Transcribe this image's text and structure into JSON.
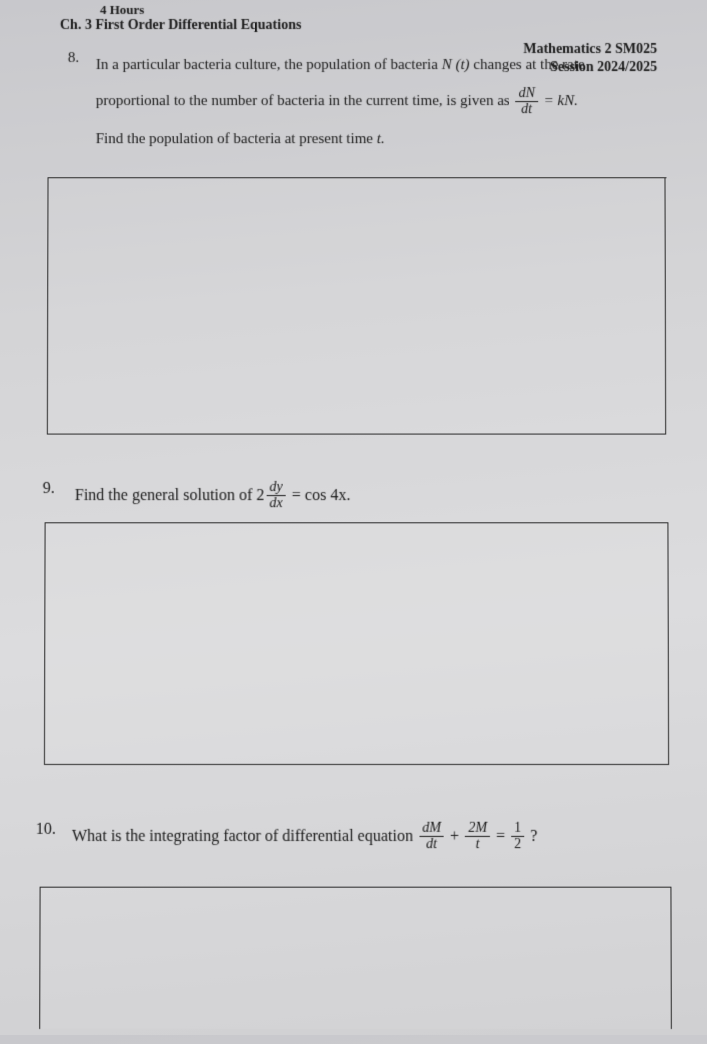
{
  "header": {
    "hours": "4 Hours",
    "chapter": "Ch. 3 First Order Differential Equations",
    "course": "Mathematics 2 SM025",
    "session": "Session 2024/2025"
  },
  "q8": {
    "num": "8.",
    "line1_a": "In a particular bacteria culture, the population of bacteria ",
    "line1_nt": "N (t)",
    "line1_b": " changes at the rate",
    "line2_a": "proportional to the number of bacteria in the current time, is given as ",
    "frac_num": "dN",
    "frac_den": "dt",
    "eq_rhs": " = kN.",
    "line3": "Find the population of bacteria at present time ",
    "line3_t": "t."
  },
  "q9": {
    "num": "9.",
    "text_a": "Find the general solution of ",
    "coef": "2",
    "frac_num": "dy",
    "frac_den": "dx",
    "eq_rhs": " = cos 4x."
  },
  "q10": {
    "num": "10.",
    "text_a": "What is the integrating factor of differential equation ",
    "f1_num": "dM",
    "f1_den": "dt",
    "plus": " + ",
    "f2_num": "2M",
    "f2_den": "t",
    "eq": " = ",
    "f3_num": "1",
    "f3_den": "2",
    "qmark": " ?"
  },
  "style": {
    "text_color": "#1a1a1a",
    "border_color": "#2a2a2a",
    "bg_gradient": [
      "#c8c8cc",
      "#d4d4d6",
      "#dcdcde",
      "#d0d0d2"
    ],
    "font_family": "Times New Roman",
    "body_fontsize": 15,
    "heading_fontsize": 14
  }
}
